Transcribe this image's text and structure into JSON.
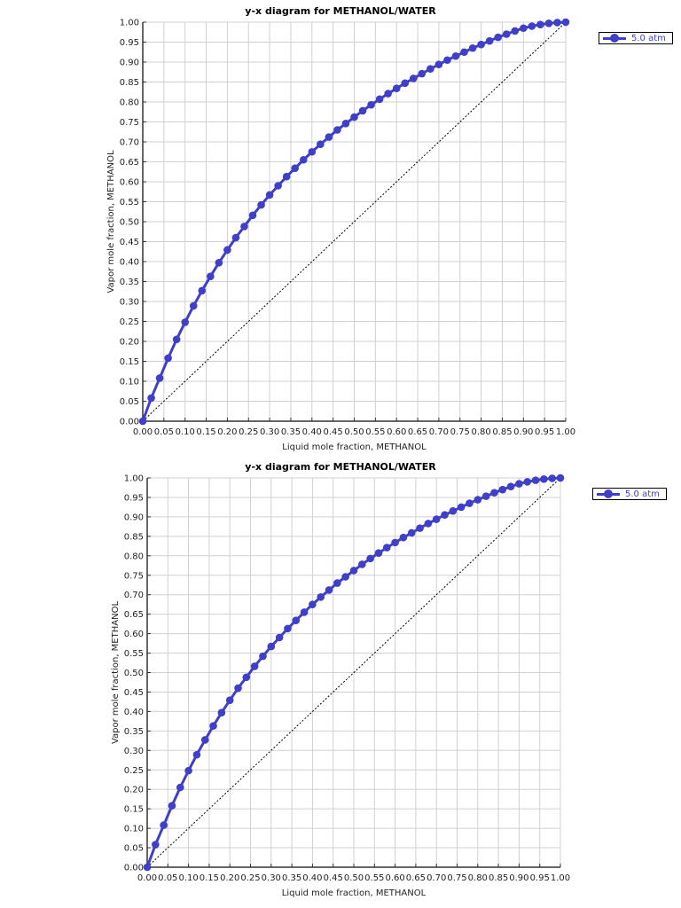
{
  "colors": {
    "series": "#3f3fc8",
    "grid": "#d0d0d0",
    "axis": "#333333",
    "diagonal": "#000000"
  },
  "charts": [
    {
      "title": "y-x diagram for METHANOL/WATER",
      "xlabel": "Liquid mole fraction, METHANOL",
      "ylabel": "Vapor mole fraction, METHANOL",
      "legend": "5.0 atm"
    },
    {
      "title": "y-x diagram for METHANOL/WATER",
      "xlabel": "Liquid mole fraction, METHANOL",
      "ylabel": "Vapor mole fraction, METHANOL",
      "legend": "5.0 atm"
    }
  ],
  "chart_data": [
    {
      "type": "line",
      "title": "y-x diagram for METHANOL/WATER",
      "xlabel": "Liquid mole fraction, METHANOL",
      "ylabel": "Vapor mole fraction, METHANOL",
      "xlim": [
        0,
        1
      ],
      "ylim": [
        0,
        1
      ],
      "grid": true,
      "legend_position": "top-right-outside",
      "x_ticks": [
        "0.00",
        "0.05",
        "0.10",
        "0.15",
        "0.20",
        "0.25",
        "0.30",
        "0.35",
        "0.40",
        "0.45",
        "0.50",
        "0.55",
        "0.60",
        "0.65",
        "0.70",
        "0.75",
        "0.80",
        "0.85",
        "0.90",
        "0.95",
        "1.00"
      ],
      "y_ticks": [
        "0.00",
        "0.05",
        "0.10",
        "0.15",
        "0.20",
        "0.25",
        "0.30",
        "0.35",
        "0.40",
        "0.45",
        "0.50",
        "0.55",
        "0.60",
        "0.65",
        "0.70",
        "0.75",
        "0.80",
        "0.85",
        "0.90",
        "0.95",
        "1.00"
      ],
      "x": [
        0.0,
        0.02,
        0.04,
        0.06,
        0.08,
        0.1,
        0.12,
        0.14,
        0.16,
        0.18,
        0.2,
        0.22,
        0.24,
        0.26,
        0.28,
        0.3,
        0.32,
        0.34,
        0.36,
        0.38,
        0.4,
        0.42,
        0.44,
        0.46,
        0.48,
        0.5,
        0.52,
        0.54,
        0.56,
        0.58,
        0.6,
        0.62,
        0.64,
        0.66,
        0.68,
        0.7,
        0.72,
        0.74,
        0.76,
        0.78,
        0.8,
        0.82,
        0.84,
        0.86,
        0.88,
        0.9,
        0.92,
        0.94,
        0.96,
        0.98,
        1.0
      ],
      "series": [
        {
          "name": "5.0 atm",
          "values": [
            0.0,
            0.058,
            0.108,
            0.158,
            0.205,
            0.248,
            0.289,
            0.327,
            0.363,
            0.397,
            0.429,
            0.46,
            0.488,
            0.516,
            0.542,
            0.567,
            0.59,
            0.613,
            0.634,
            0.655,
            0.675,
            0.694,
            0.712,
            0.73,
            0.746,
            0.762,
            0.778,
            0.793,
            0.807,
            0.821,
            0.834,
            0.847,
            0.859,
            0.871,
            0.883,
            0.894,
            0.905,
            0.915,
            0.925,
            0.935,
            0.944,
            0.953,
            0.962,
            0.97,
            0.978,
            0.985,
            0.99,
            0.994,
            0.997,
            0.999,
            1.0
          ]
        },
        {
          "name": "y = x reference",
          "values": [
            0.0,
            1.0
          ],
          "x": [
            0.0,
            1.0
          ],
          "style": "dotted"
        }
      ]
    },
    {
      "type": "line",
      "title": "y-x diagram for METHANOL/WATER",
      "xlabel": "Liquid mole fraction, METHANOL",
      "ylabel": "Vapor mole fraction, METHANOL",
      "xlim": [
        0,
        1
      ],
      "ylim": [
        0,
        1
      ],
      "grid": true,
      "legend_position": "top-right-outside",
      "x_ticks": [
        "0.00",
        "0.05",
        "0.10",
        "0.15",
        "0.20",
        "0.25",
        "0.30",
        "0.35",
        "0.40",
        "0.45",
        "0.50",
        "0.55",
        "0.60",
        "0.65",
        "0.70",
        "0.75",
        "0.80",
        "0.85",
        "0.90",
        "0.95",
        "1.00"
      ],
      "y_ticks": [
        "0.00",
        "0.05",
        "0.10",
        "0.15",
        "0.20",
        "0.25",
        "0.30",
        "0.35",
        "0.40",
        "0.45",
        "0.50",
        "0.55",
        "0.60",
        "0.65",
        "0.70",
        "0.75",
        "0.80",
        "0.85",
        "0.90",
        "0.95",
        "1.00"
      ],
      "x": [
        0.0,
        0.02,
        0.04,
        0.06,
        0.08,
        0.1,
        0.12,
        0.14,
        0.16,
        0.18,
        0.2,
        0.22,
        0.24,
        0.26,
        0.28,
        0.3,
        0.32,
        0.34,
        0.36,
        0.38,
        0.4,
        0.42,
        0.44,
        0.46,
        0.48,
        0.5,
        0.52,
        0.54,
        0.56,
        0.58,
        0.6,
        0.62,
        0.64,
        0.66,
        0.68,
        0.7,
        0.72,
        0.74,
        0.76,
        0.78,
        0.8,
        0.82,
        0.84,
        0.86,
        0.88,
        0.9,
        0.92,
        0.94,
        0.96,
        0.98,
        1.0
      ],
      "series": [
        {
          "name": "5.0 atm",
          "values": [
            0.0,
            0.058,
            0.108,
            0.158,
            0.205,
            0.248,
            0.289,
            0.327,
            0.363,
            0.397,
            0.429,
            0.46,
            0.488,
            0.516,
            0.542,
            0.567,
            0.59,
            0.613,
            0.634,
            0.655,
            0.675,
            0.694,
            0.712,
            0.73,
            0.746,
            0.762,
            0.778,
            0.793,
            0.807,
            0.821,
            0.834,
            0.847,
            0.859,
            0.871,
            0.883,
            0.894,
            0.905,
            0.915,
            0.925,
            0.935,
            0.944,
            0.953,
            0.962,
            0.97,
            0.978,
            0.985,
            0.99,
            0.994,
            0.997,
            0.999,
            1.0
          ]
        },
        {
          "name": "y = x reference",
          "values": [
            0.0,
            1.0
          ],
          "x": [
            0.0,
            1.0
          ],
          "style": "dotted"
        }
      ]
    }
  ]
}
